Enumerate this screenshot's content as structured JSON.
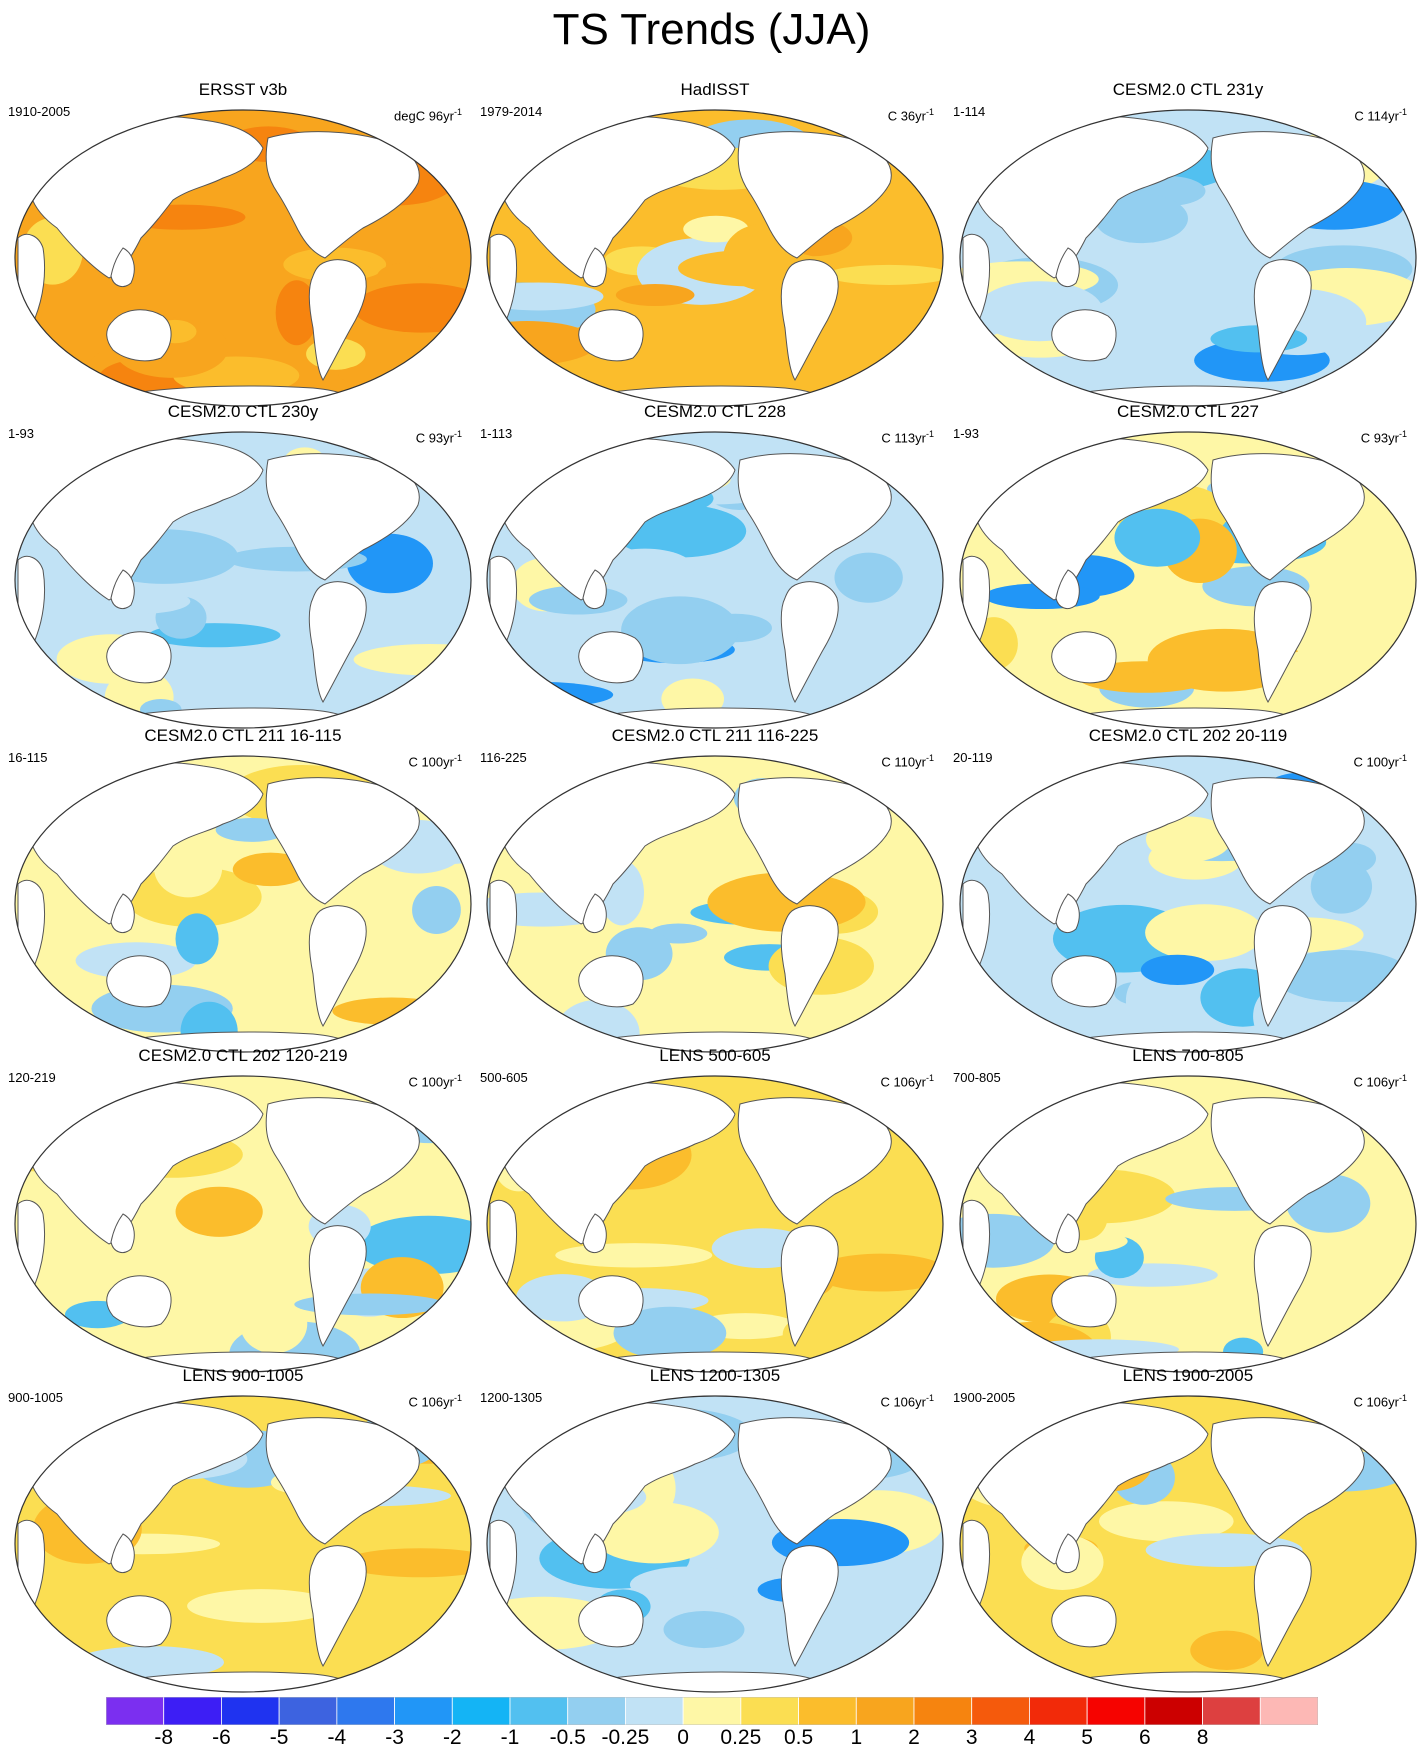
{
  "title": "TS Trends (JJA)",
  "panels": [
    {
      "title": "ERSST v3b",
      "left": "1910-2005",
      "unit": "degC",
      "nyr": "96",
      "yr": "yr",
      "exp": "-1",
      "base": 5,
      "pattern": "warm-uniform"
    },
    {
      "title": "HadISST",
      "left": "1979-2014",
      "unit": "C",
      "nyr": "36",
      "yr": "yr",
      "exp": "-1",
      "base": 3,
      "pattern": "warm-mixed"
    },
    {
      "title": "CESM2.0 CTL 231y",
      "left": "1-114",
      "unit": "C",
      "nyr": "114",
      "yr": "yr",
      "exp": "-1",
      "base": 0,
      "pattern": "cool"
    },
    {
      "title": "CESM2.0 CTL 230y",
      "left": "1-93",
      "unit": "C",
      "nyr": "93",
      "yr": "yr",
      "exp": "-1",
      "base": 0,
      "pattern": "cool"
    },
    {
      "title": "CESM2.0 CTL 228",
      "left": "1-113",
      "unit": "C",
      "nyr": "113",
      "yr": "yr",
      "exp": "-1",
      "base": 0,
      "pattern": "cool"
    },
    {
      "title": "CESM2.0 CTL 227",
      "left": "1-93",
      "unit": "C",
      "nyr": "93",
      "yr": "yr",
      "exp": "-1",
      "base": 1,
      "pattern": "mixed-warm-pacific"
    },
    {
      "title": "CESM2.0 CTL 211 16-115",
      "left": "16-115",
      "unit": "C",
      "nyr": "100",
      "yr": "yr",
      "exp": "-1",
      "base": 1,
      "pattern": "mixed"
    },
    {
      "title": "CESM2.0 CTL 211 116-225",
      "left": "116-225",
      "unit": "C",
      "nyr": "110",
      "yr": "yr",
      "exp": "-1",
      "base": 1,
      "pattern": "mixed"
    },
    {
      "title": "CESM2.0 CTL 202 20-119",
      "left": "20-119",
      "unit": "C",
      "nyr": "100",
      "yr": "yr",
      "exp": "-1",
      "base": 0,
      "pattern": "cool"
    },
    {
      "title": "CESM2.0 CTL 202 120-219",
      "left": "120-219",
      "unit": "C",
      "nyr": "100",
      "yr": "yr",
      "exp": "-1",
      "base": 1,
      "pattern": "mixed"
    },
    {
      "title": "LENS 500-605",
      "left": "500-605",
      "unit": "C",
      "nyr": "106",
      "yr": "yr",
      "exp": "-1",
      "base": 2,
      "pattern": "mixed-warm"
    },
    {
      "title": "LENS 700-805",
      "left": "700-805",
      "unit": "C",
      "nyr": "106",
      "yr": "yr",
      "exp": "-1",
      "base": 1,
      "pattern": "mixed"
    },
    {
      "title": "LENS 900-1005",
      "left": "900-1005",
      "unit": "C",
      "nyr": "106",
      "yr": "yr",
      "exp": "-1",
      "base": 2,
      "pattern": "mixed-warm"
    },
    {
      "title": "LENS 1200-1305",
      "left": "1200-1305",
      "unit": "C",
      "nyr": "106",
      "yr": "yr",
      "exp": "-1",
      "base": 0,
      "pattern": "cool"
    },
    {
      "title": "LENS 1900-2005",
      "left": "1900-2005",
      "unit": "C",
      "nyr": "106",
      "yr": "yr",
      "exp": "-1",
      "base": 2,
      "pattern": "mixed-warm"
    }
  ],
  "colorbar": {
    "colors": [
      "#7b2ff0",
      "#3d1ef5",
      "#1f33f0",
      "#3d63e0",
      "#2e78ee",
      "#2196f7",
      "#14b4f5",
      "#52c0f0",
      "#93cff0",
      "#c1e2f5",
      "#fef7a6",
      "#fbde52",
      "#fbbd2c",
      "#f8a51e",
      "#f6840f",
      "#f55a0c",
      "#f22a09",
      "#f60300",
      "#cc0000",
      "#dd4040",
      "#fdb8b5"
    ],
    "labels": [
      "-8",
      "-6",
      "-5",
      "-4",
      "-3",
      "-2",
      "-1",
      "-0.5",
      "-0.25",
      "0",
      "0.25",
      "0.5",
      "1",
      "2",
      "3",
      "4",
      "5",
      "6",
      "8"
    ]
  }
}
